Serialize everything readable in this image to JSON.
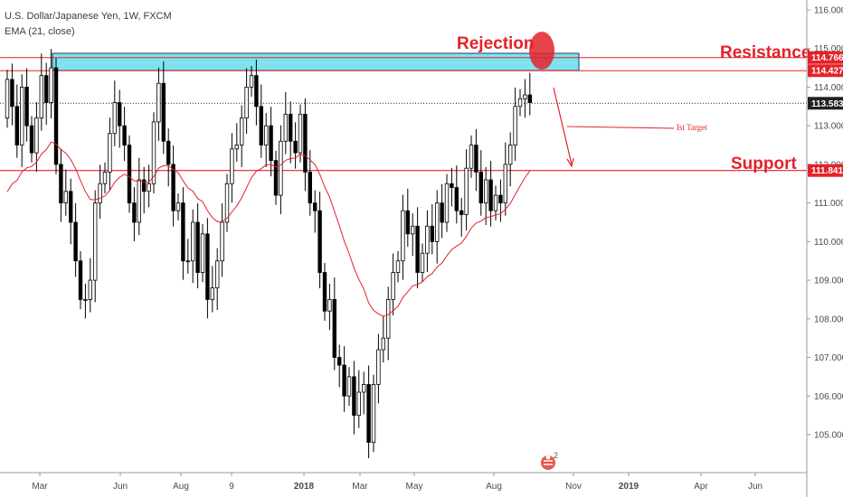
{
  "chart_title": "U.S. Dollar/Japanese Yen, 1W, FXCM",
  "indicator_label": "EMA (21, close)",
  "colors": {
    "ema": "#e3222a",
    "annotation": "#e3222a",
    "zone_fill": "#7fe3ee",
    "bull_body": "#ffffff",
    "bear_body": "#000000",
    "tag_dark": "#222222",
    "tag_red": "#e3222a"
  },
  "chart_data": {
    "type": "candlestick",
    "symbol": "U.S. Dollar/Japanese Yen",
    "timeframe": "1W",
    "source": "FXCM",
    "ylim": [
      104.2,
      116.3
    ],
    "y_ticks": [
      105.0,
      106.0,
      107.0,
      108.0,
      109.0,
      110.0,
      111.0,
      112.0,
      113.0,
      114.0,
      115.0,
      116.0
    ],
    "x_labels": [
      "Mar",
      "Jun",
      "Aug",
      "9",
      "2018",
      "Mar",
      "May",
      "Aug",
      "Nov",
      "2019",
      "Apr",
      "Jun"
    ],
    "price_tags": [
      {
        "label": "114.766",
        "value": 114.766,
        "style": "red"
      },
      {
        "label": "114.427",
        "value": 114.427,
        "style": "red"
      },
      {
        "label": "113.583",
        "value": 113.583,
        "style": "dark"
      },
      {
        "label": "111.841",
        "value": 111.841,
        "style": "red"
      }
    ],
    "last_price": 113.583,
    "resistance": {
      "label": "Resistance",
      "value": 114.427
    },
    "resistance_zone": [
      114.427,
      114.766
    ],
    "support": {
      "label": "Support",
      "value": 111.841
    },
    "annotations": [
      {
        "text": "Rejection"
      },
      {
        "text": "Ist Target"
      }
    ],
    "closes": [
      114.2,
      113.5,
      112.5,
      114.0,
      113.0,
      112.3,
      113.2,
      114.3,
      113.6,
      114.5,
      112.0,
      111.0,
      111.3,
      110.5,
      109.5,
      108.5,
      108.5,
      109.0,
      111.0,
      111.5,
      111.8,
      112.8,
      113.6,
      113.0,
      112.5,
      111.0,
      110.5,
      111.6,
      111.3,
      111.5,
      113.1,
      114.1,
      112.6,
      112.0,
      110.8,
      111.0,
      109.5,
      109.5,
      110.5,
      109.2,
      110.2,
      108.5,
      108.8,
      109.5,
      110.5,
      111.5,
      112.4,
      112.5,
      113.2,
      114.0,
      114.3,
      113.5,
      112.5,
      113.0,
      112.1,
      111.2,
      112.6,
      113.3,
      112.6,
      112.3,
      113.3,
      111.8,
      111.0,
      110.8,
      109.2,
      108.2,
      108.5,
      107.0,
      106.8,
      106.0,
      106.5,
      105.5,
      106.1,
      106.3,
      104.8,
      106.3,
      107.2,
      107.5,
      108.5,
      109.2,
      109.5,
      110.8,
      110.2,
      110.4,
      109.2,
      109.7,
      110.4,
      110.0,
      111.0,
      110.5,
      111.5,
      111.4,
      110.8,
      110.7,
      111.9,
      112.5,
      111.8,
      111.0,
      111.6,
      110.8,
      111.2,
      111.0,
      112.0,
      112.5,
      113.5,
      113.7,
      113.8,
      113.6
    ]
  }
}
